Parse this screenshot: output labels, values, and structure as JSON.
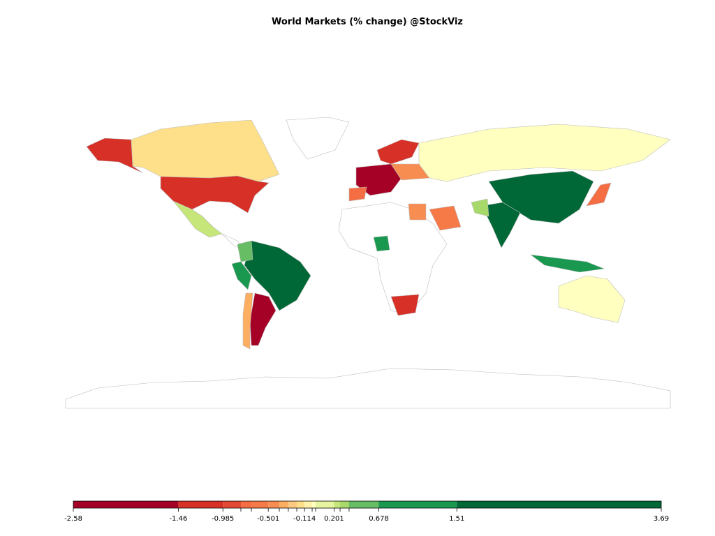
{
  "title": "World Markets (% change) @StockViz",
  "legend": {
    "breaks": [
      -2.58,
      -1.46,
      -0.985,
      {
        "value": -0.793
      },
      {
        "value": -0.681
      },
      -0.501,
      {
        "value": -0.383
      },
      {
        "value": -0.287
      },
      {
        "value": -0.197
      },
      -0.114,
      {
        "value": -0.033
      },
      {
        "value": 0.004
      },
      0.201,
      {
        "value": 0.265
      },
      {
        "value": 0.361
      },
      0.678,
      1.51,
      3.69
    ],
    "colors": [
      "#a50026",
      "#d73027",
      "#e34a33",
      "#f46d43",
      "#f67a48",
      "#f88d52",
      "#fdae61",
      "#fec980",
      "#fee08b",
      "#fff2aa",
      "#ffffbf",
      "#e6f5a0",
      "#c6e67a",
      "#a6d96a",
      "#66bd63",
      "#1a9850",
      "#006837"
    ]
  }
}
